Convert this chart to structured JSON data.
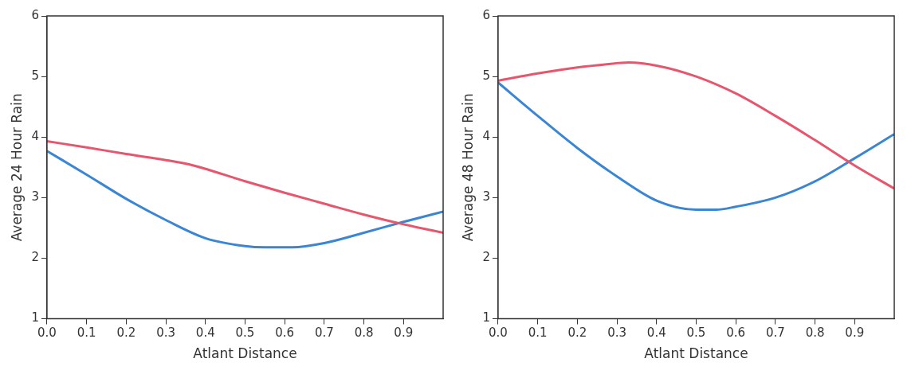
{
  "chart_data": [
    {
      "type": "line",
      "xlabel": "Atlant Distance",
      "ylabel": "Average 24 Hour Rain",
      "xlim": [
        0,
        1
      ],
      "xticks": [
        {
          "value": 0,
          "label": "0.0"
        },
        0.1,
        0.2,
        0.3,
        0.4,
        0.5,
        0.6,
        0.7,
        0.8,
        0.9
      ],
      "ylim": [
        1,
        6
      ],
      "yticks": [
        1,
        2,
        3,
        4,
        5,
        6
      ],
      "grid": false,
      "legend": false,
      "marker": "none",
      "line_style": "solid",
      "series": [
        {
          "color": "#e8566e",
          "x": [
            0,
            0.1,
            0.2,
            0.3,
            0.37,
            0.5,
            0.6,
            0.7,
            0.8,
            0.9,
            1.0
          ],
          "values": [
            3.93,
            3.83,
            3.72,
            3.62,
            3.53,
            3.27,
            3.08,
            2.9,
            2.72,
            2.56,
            2.42
          ]
        },
        {
          "color": "#3a86d4",
          "x": [
            0,
            0.1,
            0.2,
            0.3,
            0.4,
            0.5,
            0.55,
            0.62,
            0.7,
            0.8,
            0.9,
            1.0
          ],
          "values": [
            3.77,
            3.38,
            2.98,
            2.63,
            2.33,
            2.2,
            2.18,
            2.18,
            2.25,
            2.42,
            2.6,
            2.77
          ]
        }
      ]
    },
    {
      "type": "line",
      "xlabel": "Atlant Distance",
      "ylabel": "Average 48 Hour Rain",
      "xlim": [
        0,
        1
      ],
      "xticks": [
        {
          "value": 0,
          "label": "0.0"
        },
        0.1,
        0.2,
        0.3,
        0.4,
        0.5,
        0.6,
        0.7,
        0.8,
        0.9
      ],
      "ylim": [
        1,
        6
      ],
      "yticks": [
        1,
        2,
        3,
        4,
        5,
        6
      ],
      "grid": false,
      "legend": false,
      "marker": "none",
      "line_style": "solid",
      "series": [
        {
          "color": "#e8566e",
          "x": [
            0,
            0.1,
            0.2,
            0.27,
            0.33,
            0.4,
            0.5,
            0.6,
            0.7,
            0.8,
            0.9,
            1.0
          ],
          "values": [
            4.93,
            5.05,
            5.15,
            5.2,
            5.23,
            5.18,
            5.0,
            4.72,
            4.35,
            3.95,
            3.53,
            3.15
          ]
        },
        {
          "color": "#3a86d4",
          "x": [
            0,
            0.1,
            0.2,
            0.3,
            0.4,
            0.5,
            0.55,
            0.6,
            0.7,
            0.8,
            0.9,
            1.0
          ],
          "values": [
            4.9,
            4.35,
            3.82,
            3.35,
            2.95,
            2.8,
            2.8,
            2.85,
            3.0,
            3.27,
            3.65,
            4.05
          ]
        }
      ]
    }
  ]
}
